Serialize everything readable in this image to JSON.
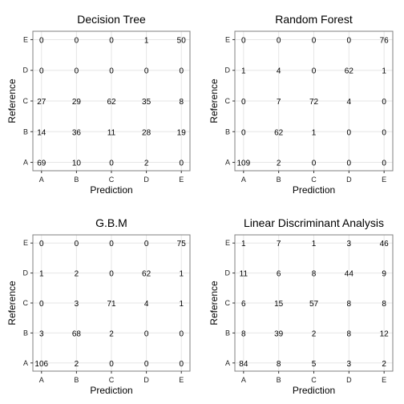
{
  "chart_data": [
    {
      "type": "heatmap",
      "title": "Decision Tree",
      "xlabel": "Prediction",
      "ylabel": "Reference",
      "x_categories": [
        "A",
        "B",
        "C",
        "D",
        "E"
      ],
      "y_categories": [
        "A",
        "B",
        "C",
        "D",
        "E"
      ],
      "values": [
        [
          69,
          10,
          0,
          2,
          0
        ],
        [
          14,
          36,
          11,
          28,
          19
        ],
        [
          27,
          29,
          62,
          35,
          8
        ],
        [
          0,
          0,
          0,
          0,
          0
        ],
        [
          0,
          0,
          0,
          1,
          50
        ]
      ]
    },
    {
      "type": "heatmap",
      "title": "Random Forest",
      "xlabel": "Prediction",
      "ylabel": "Reference",
      "x_categories": [
        "A",
        "B",
        "C",
        "D",
        "E"
      ],
      "y_categories": [
        "A",
        "B",
        "C",
        "D",
        "E"
      ],
      "values": [
        [
          109,
          2,
          0,
          0,
          0
        ],
        [
          0,
          62,
          1,
          0,
          0
        ],
        [
          0,
          7,
          72,
          4,
          0
        ],
        [
          1,
          4,
          0,
          62,
          1
        ],
        [
          0,
          0,
          0,
          0,
          76
        ]
      ]
    },
    {
      "type": "heatmap",
      "title": "G.B.M",
      "xlabel": "Prediction",
      "ylabel": "Reference",
      "x_categories": [
        "A",
        "B",
        "C",
        "D",
        "E"
      ],
      "y_categories": [
        "A",
        "B",
        "C",
        "D",
        "E"
      ],
      "values": [
        [
          106,
          2,
          0,
          0,
          0
        ],
        [
          3,
          68,
          2,
          0,
          0
        ],
        [
          0,
          3,
          71,
          4,
          1
        ],
        [
          1,
          2,
          0,
          62,
          1
        ],
        [
          0,
          0,
          0,
          0,
          75
        ]
      ]
    },
    {
      "type": "heatmap",
      "title": "Linear Discriminant Analysis",
      "xlabel": "Prediction",
      "ylabel": "Reference",
      "x_categories": [
        "A",
        "B",
        "C",
        "D",
        "E"
      ],
      "y_categories": [
        "A",
        "B",
        "C",
        "D",
        "E"
      ],
      "values": [
        [
          84,
          8,
          5,
          3,
          2
        ],
        [
          8,
          39,
          2,
          8,
          12
        ],
        [
          6,
          15,
          57,
          8,
          8
        ],
        [
          11,
          6,
          8,
          44,
          9
        ],
        [
          1,
          7,
          1,
          3,
          46
        ]
      ]
    }
  ]
}
